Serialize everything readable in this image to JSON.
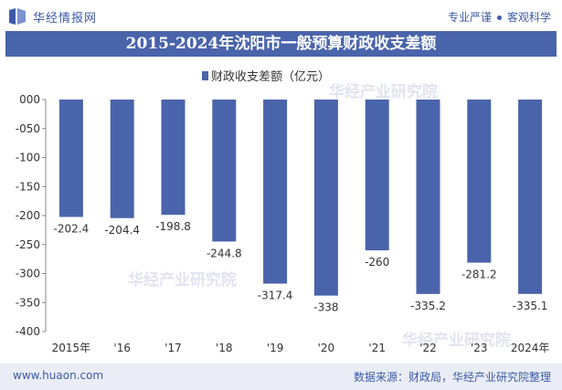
{
  "header": {
    "brand": "华经情报网",
    "tag1": "专业严谨",
    "tag2": "客观科学"
  },
  "footer": {
    "site": "www.huaon.com",
    "source": "数据来源：财政局，华经产业研究院整理"
  },
  "watermark": "华经产业研究院",
  "colors": {
    "bar": "#4a64ab",
    "axis": "#888888",
    "text": "#333333"
  },
  "chart_data": {
    "type": "bar",
    "title": "2015-2024年沈阳市一般预算财政收支差额",
    "categories": [
      "2015年",
      "'16",
      "'17",
      "'18",
      "'19",
      "'20",
      "'21",
      "'22",
      "'23",
      "2024年"
    ],
    "series": [
      {
        "name": "财政收支差额（亿元）",
        "values": [
          -202.4,
          -204.4,
          -198.8,
          -244.8,
          -317.4,
          -338,
          -260,
          -335.2,
          -281.2,
          -335.1
        ]
      }
    ],
    "value_labels": [
      "-202.4",
      "-204.4",
      "-198.8",
      "-244.8",
      "-317.4",
      "-338",
      "-260",
      "-335.2",
      "-281.2",
      "-335.1"
    ],
    "yticks": [
      "000",
      "-050",
      "-100",
      "-150",
      "-200",
      "-250",
      "-300",
      "-350",
      "-400"
    ],
    "ylim": [
      -400,
      0
    ],
    "legend_position": "top-center",
    "grid": false
  }
}
